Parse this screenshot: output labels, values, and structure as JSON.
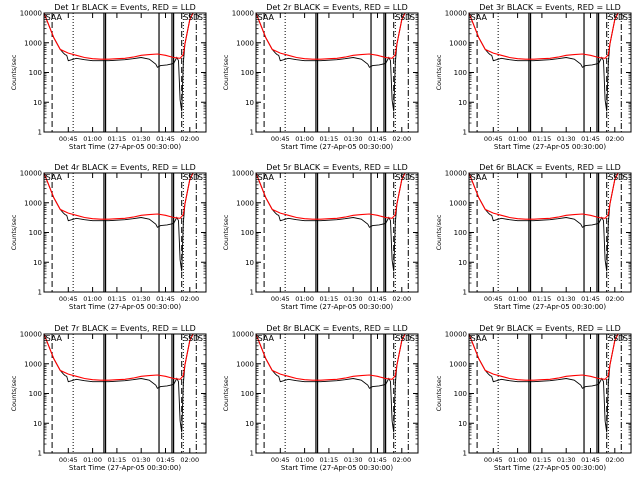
{
  "figure": {
    "panel_titles": [
      "Det 1r BLACK = Events, RED = LLD",
      "Det 2r BLACK = Events, RED = LLD",
      "Det 3r BLACK = Events, RED = LLD",
      "Det 4r BLACK = Events, RED = LLD",
      "Det 5r BLACK = Events, RED = LLD",
      "Det 6r BLACK = Events, RED = LLD",
      "Det 7r BLACK = Events, RED = LLD",
      "Det 8r BLACK = Events, RED = LLD",
      "Det 9r BLACK = Events, RED = LLD"
    ],
    "xlabel": "Start Time (27-Apr-05 00:30:00)",
    "ylabel": "Counts/sec",
    "ytick_labels": [
      "1",
      "10",
      "100",
      "1000",
      "10000"
    ],
    "xtick_labels": [
      "00:45",
      "01:00",
      "01:15",
      "01:30",
      "01:45",
      "02:00"
    ],
    "markers": [
      "SAA",
      "S",
      "S",
      "D",
      "S"
    ],
    "colors": {
      "events": "#000000",
      "lld": "#ff0000",
      "axes": "#000000"
    }
  },
  "chart_data": {
    "type": "line",
    "panel_count": 9,
    "x_unit": "minutes after 00:30:00",
    "x_range": [
      0,
      100
    ],
    "x_ticks": [
      15,
      30,
      45,
      60,
      75,
      90
    ],
    "y_scale": "log",
    "y_range": [
      1,
      10000
    ],
    "y_ticks": [
      1,
      10,
      100,
      1000,
      10000
    ],
    "vlines": {
      "dashed": [
        5,
        85
      ],
      "dotted": [
        18,
        86
      ],
      "dashdot": [
        94
      ],
      "solid": [
        37,
        38,
        71,
        79,
        80
      ]
    },
    "series": [
      {
        "name": "Events",
        "color": "#000000",
        "x": [
          0,
          6,
          10,
          12,
          13,
          14,
          15,
          20,
          25,
          30,
          35,
          37,
          40,
          45,
          50,
          55,
          60,
          65,
          69,
          70,
          72,
          76,
          80,
          82,
          83,
          84,
          85,
          86,
          87,
          90,
          92,
          100
        ],
        "y": [
          10000,
          1500,
          600,
          450,
          400,
          380,
          250,
          300,
          270,
          250,
          250,
          250,
          250,
          260,
          270,
          290,
          320,
          280,
          190,
          150,
          170,
          180,
          200,
          320,
          250,
          12,
          5,
          200,
          900,
          6000,
          10000,
          10000
        ]
      },
      {
        "name": "LLD",
        "color": "#ff0000",
        "x": [
          0,
          6,
          10,
          15,
          20,
          25,
          30,
          35,
          40,
          45,
          50,
          55,
          60,
          65,
          70,
          75,
          80,
          84,
          86,
          87,
          90,
          92,
          100
        ],
        "y": [
          10000,
          1500,
          600,
          450,
          380,
          320,
          290,
          280,
          280,
          290,
          300,
          330,
          380,
          400,
          420,
          380,
          320,
          300,
          400,
          900,
          6000,
          10000,
          10000
        ]
      }
    ]
  }
}
